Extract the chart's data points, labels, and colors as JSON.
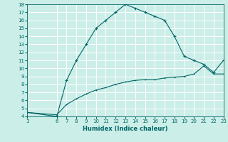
{
  "xlabel": "Humidex (Indice chaleur)",
  "xlim": [
    3,
    23
  ],
  "ylim": [
    4,
    18
  ],
  "xticks": [
    3,
    6,
    7,
    8,
    9,
    10,
    11,
    12,
    13,
    14,
    15,
    16,
    17,
    18,
    19,
    20,
    21,
    22,
    23
  ],
  "yticks": [
    4,
    5,
    6,
    7,
    8,
    9,
    10,
    11,
    12,
    13,
    14,
    15,
    16,
    17,
    18
  ],
  "background_color": "#cceee8",
  "grid_color": "#ffffff",
  "line_color": "#006666",
  "curve1_x": [
    3,
    6,
    7,
    8,
    9,
    10,
    11,
    12,
    13,
    14,
    15,
    16,
    17,
    18,
    19,
    20,
    21,
    22,
    23
  ],
  "curve1_y": [
    4.5,
    4.0,
    8.5,
    11.0,
    13.0,
    15.0,
    16.0,
    17.0,
    18.0,
    17.5,
    17.0,
    16.5,
    16.0,
    14.0,
    11.5,
    11.0,
    10.5,
    9.5,
    11.0
  ],
  "curve2_x": [
    3,
    6,
    7,
    8,
    9,
    10,
    11,
    12,
    13,
    14,
    15,
    16,
    17,
    18,
    19,
    20,
    21,
    22,
    23
  ],
  "curve2_y": [
    4.5,
    4.2,
    5.5,
    6.2,
    6.8,
    7.3,
    7.6,
    8.0,
    8.3,
    8.5,
    8.6,
    8.6,
    8.8,
    8.9,
    9.0,
    9.3,
    10.3,
    9.3,
    9.3
  ]
}
